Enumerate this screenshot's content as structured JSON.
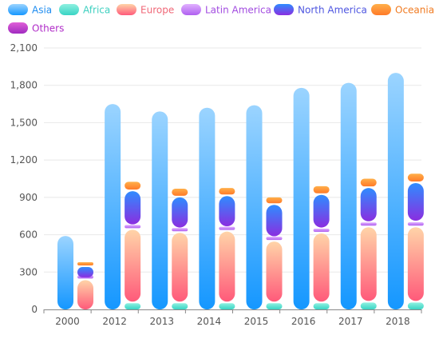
{
  "chart_data": {
    "type": "bar",
    "categories": [
      "2000",
      "2012",
      "2013",
      "2014",
      "2015",
      "2016",
      "2017",
      "2018"
    ],
    "ylim": [
      0,
      2100
    ],
    "yticks": [
      0,
      300,
      600,
      900,
      1200,
      1500,
      1800,
      2100
    ],
    "ytick_labels": [
      "0",
      "300",
      "600",
      "900",
      "1,200",
      "1,500",
      "1,800",
      "2,100"
    ],
    "grid": true,
    "legend_position": "top",
    "series": [
      {
        "name": "Asia",
        "label_color": "#1e8cf0",
        "grad": [
          "#9bd4ff",
          "#1597ff"
        ],
        "stack": "a",
        "values": [
          590,
          1650,
          1590,
          1620,
          1640,
          1780,
          1820,
          1900
        ]
      },
      {
        "name": "Africa",
        "label_color": "#3fd0c0",
        "grad": [
          "#8ef0e0",
          "#39d4c4"
        ],
        "stack": "b",
        "values": [
          0,
          50,
          50,
          50,
          50,
          50,
          55,
          55
        ]
      },
      {
        "name": "Europe",
        "label_color": "#f06878",
        "grad": [
          "#ffd4a8",
          "#ff5a7a"
        ],
        "stack": "b",
        "values": [
          235,
          590,
          565,
          575,
          495,
          560,
          605,
          605
        ]
      },
      {
        "name": "Latin America",
        "label_color": "#a24ce0",
        "grad": [
          "#e0b0ff",
          "#b060f0"
        ],
        "stack": "b",
        "values": [
          10,
          30,
          30,
          30,
          30,
          35,
          35,
          40
        ]
      },
      {
        "name": "North America",
        "label_color": "#4d55e0",
        "grad": [
          "#2f8cff",
          "#8a2ee0"
        ],
        "stack": "b",
        "values": [
          95,
          280,
          255,
          255,
          265,
          275,
          280,
          315
        ]
      },
      {
        "name": "Oceania",
        "label_color": "#f07a20",
        "grad": [
          "#ffb04a",
          "#ff7a28"
        ],
        "stack": "b",
        "values": [
          10,
          75,
          70,
          65,
          60,
          70,
          75,
          75
        ]
      },
      {
        "name": "Others",
        "label_color": "#b02cc8",
        "grad": [
          "#e060d8",
          "#a02ac0"
        ],
        "stack": "b",
        "values": [
          0,
          0,
          0,
          0,
          0,
          0,
          0,
          0
        ]
      }
    ]
  }
}
